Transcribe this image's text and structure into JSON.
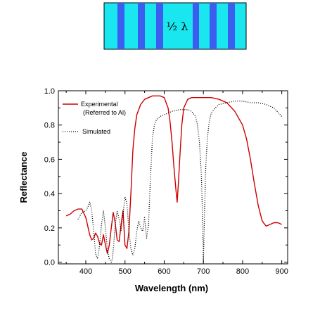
{
  "stack": {
    "label": "½ λ",
    "layer_color": "#1ae6f0",
    "stripe_color": "#3c5ef0"
  },
  "chart_data": {
    "type": "line",
    "title": "",
    "xlabel": "Wavelength (nm)",
    "ylabel": "Reflectance",
    "xlim": [
      330,
      915
    ],
    "ylim": [
      -0.01,
      1.0
    ],
    "xticks": [
      "400",
      "500",
      "600",
      "700",
      "800",
      "900"
    ],
    "yticks": [
      "0.0",
      "0.2",
      "0.4",
      "0.6",
      "0.8",
      "1.0"
    ],
    "grid": false,
    "legend_position": "top-left",
    "series": [
      {
        "name": "Experimental",
        "name_line2": "(Referred to Al)",
        "color": "#cc0000",
        "style": "solid",
        "x": [
          350,
          360,
          370,
          380,
          390,
          400,
          410,
          415,
          420,
          425,
          430,
          435,
          440,
          445,
          450,
          455,
          460,
          465,
          470,
          475,
          480,
          485,
          490,
          495,
          500,
          505,
          510,
          515,
          520,
          525,
          530,
          540,
          550,
          560,
          570,
          580,
          590,
          600,
          610,
          615,
          620,
          625,
          630,
          633,
          636,
          640,
          645,
          650,
          660,
          670,
          680,
          690,
          700,
          720,
          740,
          760,
          780,
          800,
          810,
          820,
          830,
          840,
          850,
          860,
          870,
          880,
          890,
          900
        ],
        "y": [
          0.27,
          0.28,
          0.3,
          0.31,
          0.31,
          0.26,
          0.16,
          0.13,
          0.14,
          0.17,
          0.15,
          0.11,
          0.1,
          0.16,
          0.1,
          0.05,
          0.1,
          0.2,
          0.29,
          0.23,
          0.13,
          0.12,
          0.22,
          0.3,
          0.1,
          0.08,
          0.18,
          0.4,
          0.65,
          0.78,
          0.86,
          0.92,
          0.95,
          0.96,
          0.97,
          0.97,
          0.97,
          0.96,
          0.9,
          0.82,
          0.7,
          0.55,
          0.42,
          0.35,
          0.45,
          0.62,
          0.8,
          0.9,
          0.95,
          0.96,
          0.96,
          0.96,
          0.96,
          0.96,
          0.95,
          0.93,
          0.88,
          0.8,
          0.72,
          0.6,
          0.46,
          0.33,
          0.24,
          0.21,
          0.22,
          0.23,
          0.23,
          0.22
        ]
      },
      {
        "name": "Simulated",
        "color": "#000000",
        "style": "dotted",
        "x": [
          380,
          390,
          400,
          405,
          410,
          415,
          420,
          425,
          430,
          433,
          436,
          440,
          445,
          450,
          455,
          460,
          465,
          468,
          471,
          475,
          480,
          485,
          490,
          495,
          500,
          505,
          510,
          515,
          520,
          525,
          530,
          535,
          540,
          545,
          550,
          555,
          560,
          565,
          570,
          575,
          580,
          585,
          590,
          600,
          610,
          620,
          640,
          660,
          670,
          680,
          685,
          690,
          695,
          698,
          700,
          703,
          706,
          710,
          715,
          720,
          730,
          740,
          760,
          780,
          800,
          820,
          840,
          860,
          880,
          900
        ],
        "y": [
          0.25,
          0.29,
          0.3,
          0.32,
          0.35,
          0.3,
          0.18,
          0.05,
          0.02,
          0.06,
          0.12,
          0.22,
          0.3,
          0.2,
          0.07,
          0.02,
          0.0,
          0.02,
          0.1,
          0.22,
          0.3,
          0.25,
          0.18,
          0.28,
          0.38,
          0.34,
          0.18,
          0.08,
          0.04,
          0.08,
          0.18,
          0.24,
          0.2,
          0.18,
          0.26,
          0.14,
          0.22,
          0.5,
          0.72,
          0.8,
          0.83,
          0.84,
          0.85,
          0.86,
          0.87,
          0.88,
          0.89,
          0.89,
          0.88,
          0.85,
          0.8,
          0.7,
          0.5,
          0.25,
          0.0,
          0.3,
          0.55,
          0.72,
          0.82,
          0.87,
          0.9,
          0.92,
          0.93,
          0.94,
          0.94,
          0.93,
          0.93,
          0.92,
          0.9,
          0.85
        ]
      }
    ]
  }
}
